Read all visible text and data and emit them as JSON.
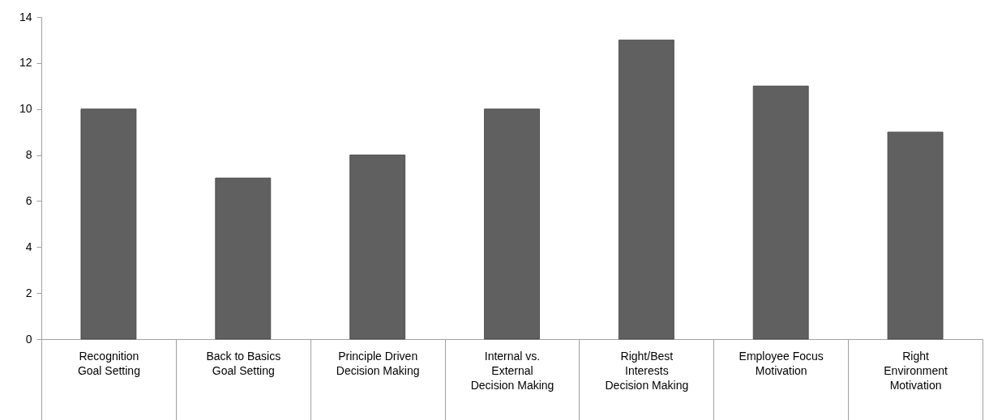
{
  "chart_data": {
    "type": "bar",
    "categories": [
      "Recognition\nGoal Setting",
      "Back to Basics\nGoal Setting",
      "Principle Driven\nDecision Making",
      "Internal vs. External\nDecision Making",
      "Right/Best Interests\nDecision Making",
      "Employee Focus\nMotivation",
      "Right Environment\nMotivation"
    ],
    "values": [
      10,
      7,
      8,
      10,
      13,
      11,
      9
    ],
    "color": "#606060",
    "ylim": [
      0,
      14
    ],
    "yticks": [
      0,
      2,
      4,
      6,
      8,
      10,
      12,
      14
    ],
    "grid": false
  }
}
